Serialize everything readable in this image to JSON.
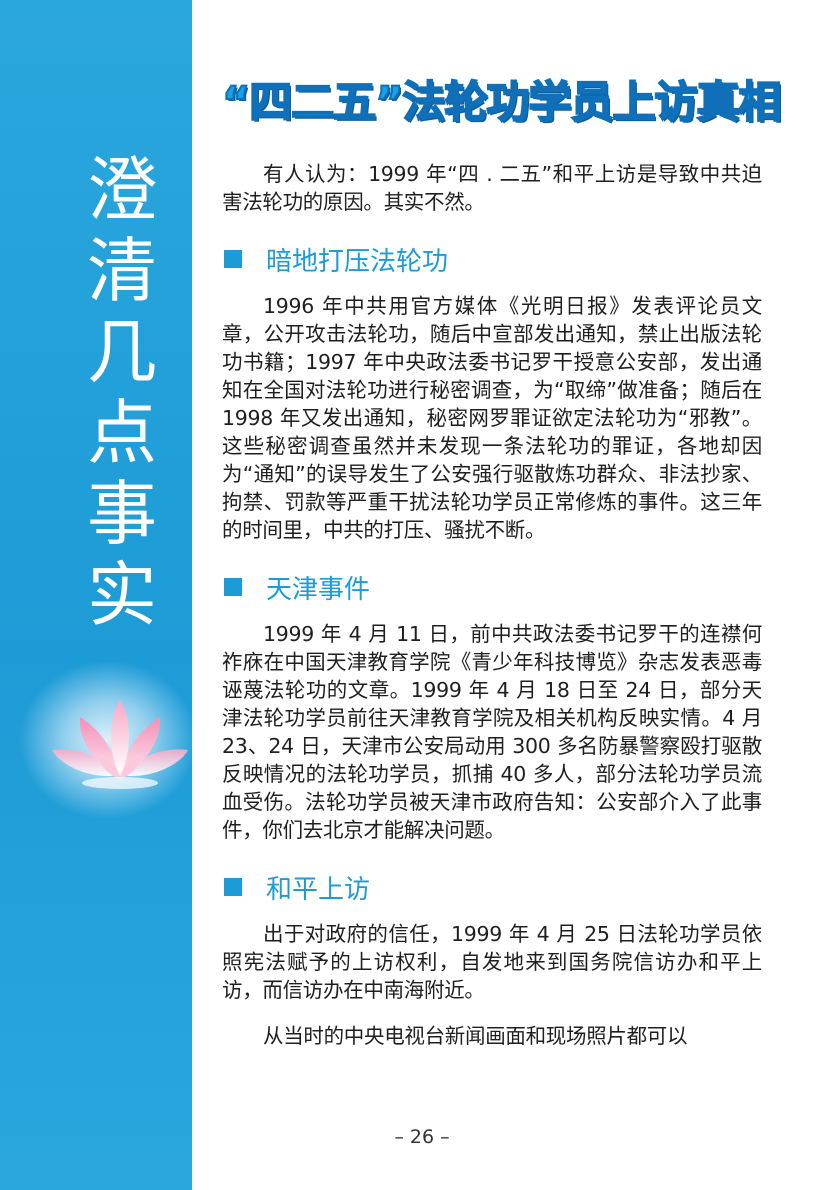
{
  "sidebar": {
    "vertical_title": [
      "澄",
      "清",
      "几",
      "点",
      "事",
      "实"
    ]
  },
  "article": {
    "title": "“四二五”法轮功学员上访真相",
    "intro": "有人认为：1999 年“四 . 二五”和平上访是导致中共迫害法轮功的原因。其实不然。",
    "sections": [
      {
        "heading": "暗地打压法轮功",
        "paragraphs": [
          "1996 年中共用官方媒体《光明日报》发表评论员文章，公开攻击法轮功，随后中宣部发出通知，禁止出版法轮功书籍；1997 年中央政法委书记罗干授意公安部，发出通知在全国对法轮功进行秘密调查，为“取缔”做准备；随后在 1998 年又发出通知，秘密网罗罪证欲定法轮功为“邪教”。这些秘密调查虽然并未发现一条法轮功的罪证，各地却因为“通知”的误导发生了公安强行驱散炼功群众、非法抄家、拘禁、罚款等严重干扰法轮功学员正常修炼的事件。这三年的时间里，中共的打压、骚扰不断。"
        ]
      },
      {
        "heading": "天津事件",
        "paragraphs": [
          "1999 年 4 月 11 日，前中共政法委书记罗干的连襟何祚庥在中国天津教育学院《青少年科技博览》杂志发表恶毒诬蔑法轮功的文章。1999 年 4 月 18 日至 24 日，部分天津法轮功学员前往天津教育学院及相关机构反映实情。4 月 23、24 日，天津市公安局动用 300 多名防暴警察殴打驱散反映情况的法轮功学员，抓捕 40 多人，部分法轮功学员流血受伤。法轮功学员被天津市政府告知：公安部介入了此事件，你们去北京才能解决问题。"
        ]
      },
      {
        "heading": "和平上访",
        "paragraphs": [
          "出于对政府的信任，1999 年 4 月 25 日法轮功学员依照宪法赋予的上访权利，自发地来到国务院信访办和平上访，而信访办在中南海附近。",
          "从当时的中央电视台新闻画面和现场照片都可以"
        ]
      }
    ]
  },
  "footer": {
    "page_number": "– 26 –"
  },
  "colors": {
    "sidebar_blue": "#1d9bd6",
    "title_blue": "#13a3e6",
    "heading_blue": "#1d9bd6",
    "body_text": "#1f1f1f"
  },
  "icons": {
    "lotus": "lotus-flower-icon",
    "section_marker": "square-bullet-icon"
  }
}
